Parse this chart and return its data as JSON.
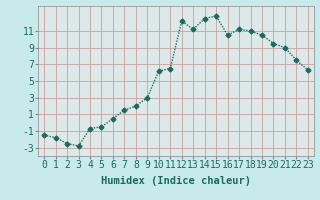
{
  "x": [
    0,
    1,
    2,
    3,
    4,
    5,
    6,
    7,
    8,
    9,
    10,
    11,
    12,
    13,
    14,
    15,
    16,
    17,
    18,
    19,
    20,
    21,
    22,
    23
  ],
  "y": [
    -1.5,
    -1.8,
    -2.5,
    -2.8,
    -0.7,
    -0.5,
    0.5,
    1.5,
    2.0,
    3.0,
    6.2,
    6.5,
    12.2,
    11.2,
    12.5,
    12.8,
    10.5,
    11.2,
    11.0,
    10.5,
    9.5,
    9.0,
    7.5,
    6.3
  ],
  "line_color": "#1a6b5e",
  "marker": "D",
  "marker_size": 2.5,
  "bg_color": "#c8eaea",
  "plot_bg_color": "#dde8e8",
  "grid_color": "#c8a0a0",
  "xlabel": "Humidex (Indice chaleur)",
  "xlim": [
    -0.5,
    23.5
  ],
  "ylim": [
    -4,
    14
  ],
  "yticks": [
    -3,
    -1,
    1,
    3,
    5,
    7,
    9,
    11
  ],
  "xticks": [
    0,
    1,
    2,
    3,
    4,
    5,
    6,
    7,
    8,
    9,
    10,
    11,
    12,
    13,
    14,
    15,
    16,
    17,
    18,
    19,
    20,
    21,
    22,
    23
  ],
  "xlabel_fontsize": 7.5,
  "tick_fontsize": 7,
  "line_width": 1.0
}
